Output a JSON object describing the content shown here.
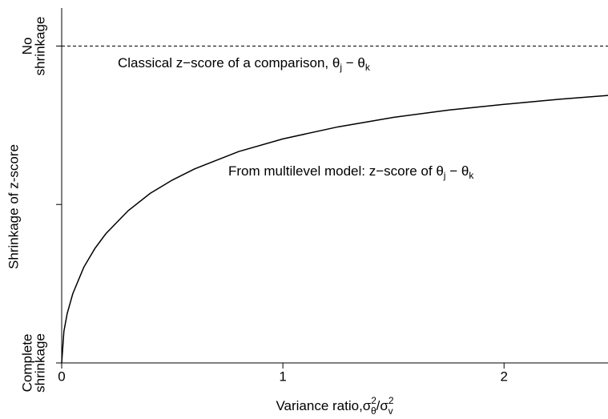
{
  "chart_data": {
    "type": "line",
    "y_axis_label": "Shrinkage of z-score",
    "x_axis_label_parts": [
      "Variance ratio,σ",
      "2",
      "θ",
      "/σ",
      "2",
      "v"
    ],
    "annotations": [
      {
        "parts": [
          "Classical z−score of a comparison, θ",
          "j",
          " − θ",
          "k"
        ]
      },
      {
        "parts": [
          "From multilevel model:  z−score of θ",
          "j",
          " − θ",
          "k"
        ]
      }
    ],
    "x": [
      0,
      0.01,
      0.025,
      0.05,
      0.1,
      0.15,
      0.2,
      0.3,
      0.4,
      0.5,
      0.6,
      0.8,
      1.0,
      1.25,
      1.5,
      1.75,
      2.0,
      2.25,
      2.47
    ],
    "series": [
      {
        "color": "#000000",
        "values": [
          0,
          0.0995,
          0.156,
          0.218,
          0.302,
          0.361,
          0.408,
          0.48,
          0.535,
          0.577,
          0.612,
          0.667,
          0.707,
          0.745,
          0.775,
          0.798,
          0.816,
          0.832,
          0.844
        ]
      }
    ],
    "reference_line": 1,
    "xlim": [
      0,
      2.47
    ],
    "ylim": [
      0,
      1.12
    ],
    "xticks": [
      0,
      1,
      2
    ],
    "yticks": [
      {
        "value": 0,
        "label": [
          "Complete",
          "shrinkage"
        ]
      },
      {
        "value": 0.5,
        "label": null
      },
      {
        "value": 1,
        "label": [
          "No",
          "shrinkage"
        ]
      }
    ]
  }
}
